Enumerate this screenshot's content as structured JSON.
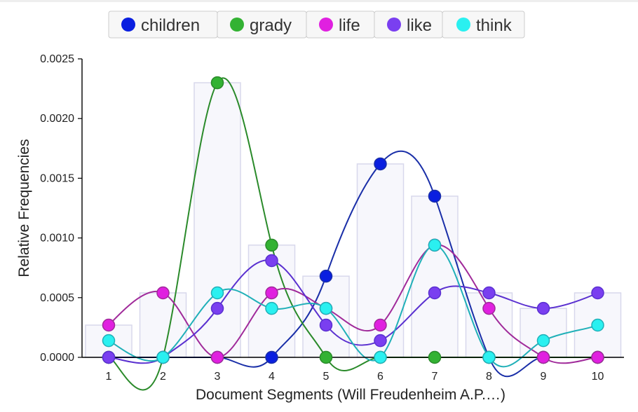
{
  "chart_data": {
    "type": "line",
    "title": "",
    "xlabel": "Document Segments (Will Freudenheim A.P.…)",
    "ylabel": "Relative Frequencies",
    "x": [
      1,
      2,
      3,
      4,
      5,
      6,
      7,
      8,
      9,
      10
    ],
    "x_tick_labels": [
      "1",
      "2",
      "3",
      "4",
      "5",
      "6",
      "7",
      "8",
      "9",
      "10"
    ],
    "ylim": [
      0,
      0.0025
    ],
    "y_ticks": [
      0,
      0.0005,
      0.001,
      0.0015,
      0.002,
      0.0025
    ],
    "y_tick_labels": [
      "0.0000",
      "0.0005",
      "0.0010",
      "0.0015",
      "0.0020",
      "0.0025"
    ],
    "legend_position": "top-center",
    "bars_note_values": [
      0.00027,
      0.00054,
      0.0023,
      0.00094,
      0.00068,
      0.00162,
      0.00135,
      0.00054,
      0.00041,
      0.00054
    ],
    "series": [
      {
        "name": "children",
        "color": "#0a1fe0",
        "line_color": "#1a2fa8",
        "values": [
          0,
          0,
          0,
          0,
          0.00068,
          0.00162,
          0.00135,
          0,
          0,
          0
        ]
      },
      {
        "name": "grady",
        "color": "#33b233",
        "line_color": "#2a8a2a",
        "values": [
          0,
          0,
          0.0023,
          0.00094,
          0,
          0,
          0,
          0,
          0,
          0
        ]
      },
      {
        "name": "life",
        "color": "#e020e0",
        "line_color": "#a02a9a",
        "values": [
          0.00027,
          0.00054,
          0,
          0.00054,
          0.00041,
          0.00027,
          0.00094,
          0.00041,
          0,
          0
        ]
      },
      {
        "name": "like",
        "color": "#7a3ff0",
        "line_color": "#5a30d0",
        "values": [
          0,
          0,
          0.00041,
          0.00081,
          0.00027,
          0.00014,
          0.00054,
          0.00054,
          0.00041,
          0.00054
        ]
      },
      {
        "name": "think",
        "color": "#2af0f0",
        "line_color": "#20b0b8",
        "values": [
          0.00014,
          0,
          0.00054,
          0.00041,
          0.00041,
          0,
          0.00094,
          0,
          0.00014,
          0.00027
        ]
      }
    ]
  }
}
